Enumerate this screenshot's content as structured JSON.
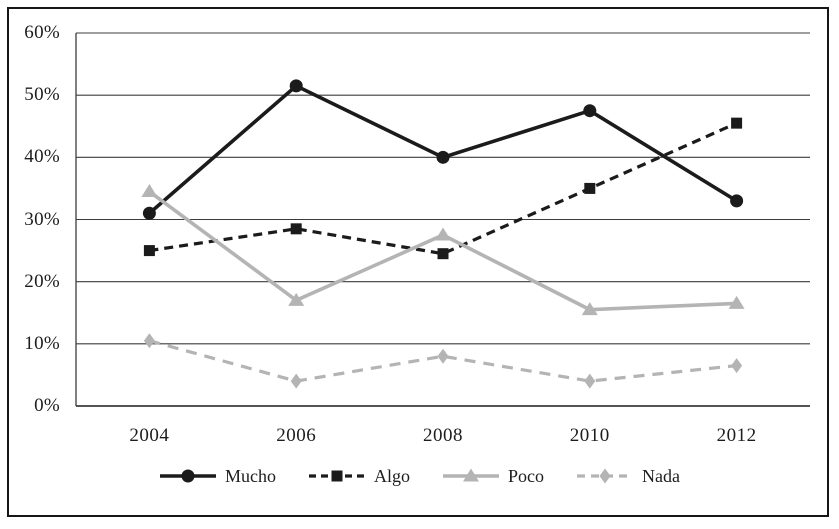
{
  "figure": {
    "background": "#ffffff",
    "border_color": "#161616",
    "axis_color": "#3c3c3c",
    "series_black": "#1b1b1b",
    "series_gray": "#b4b4b4"
  },
  "chart_data": {
    "type": "line",
    "title": "",
    "xlabel": "",
    "ylabel": "",
    "categories": [
      "2004",
      "2006",
      "2008",
      "2010",
      "2012"
    ],
    "series": [
      {
        "name": "Mucho",
        "values": [
          31,
          51.5,
          40,
          47.5,
          33
        ],
        "color": "#1b1b1b",
        "line_style": "solid",
        "marker": "circle"
      },
      {
        "name": "Algo",
        "values": [
          25,
          28.5,
          24.5,
          35,
          45.5
        ],
        "color": "#1b1b1b",
        "line_style": "dashed",
        "marker": "square"
      },
      {
        "name": "Poco",
        "values": [
          34.5,
          17,
          27.5,
          15.5,
          16.5
        ],
        "color": "#b4b4b4",
        "line_style": "solid",
        "marker": "triangle"
      },
      {
        "name": "Nada",
        "values": [
          10.5,
          4,
          8,
          4,
          6.5
        ],
        "color": "#b4b4b4",
        "line_style": "dashed",
        "marker": "diamond"
      }
    ],
    "ylim": [
      0,
      60
    ],
    "ytick_step": 10,
    "ytick_suffix": "%",
    "yticklabels": [
      "0%",
      "10%",
      "20%",
      "30%",
      "40%",
      "50%",
      "60%"
    ],
    "grid": "horizontal",
    "legend_position": "bottom"
  }
}
